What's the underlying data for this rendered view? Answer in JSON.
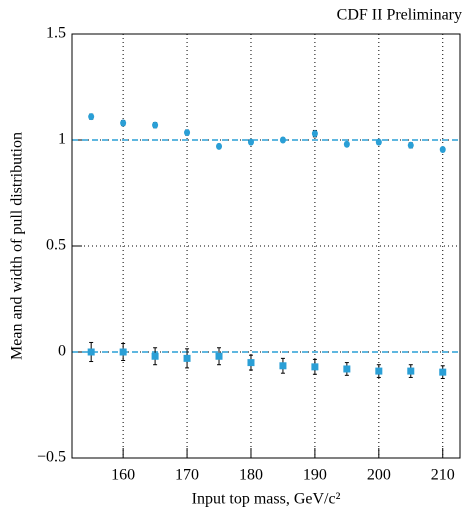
{
  "chart_data": {
    "type": "scatter",
    "title": "CDF II Preliminary",
    "x_label": "Input top mass, GeV/c²",
    "y_label": "Mean and width of pull distribution",
    "x": [
      155,
      160,
      165,
      170,
      175,
      180,
      185,
      190,
      195,
      200,
      205,
      210
    ],
    "series": [
      {
        "color": "#2a9fd6",
        "marker": "circle",
        "values": [
          1.11,
          1.08,
          1.07,
          1.035,
          0.97,
          0.99,
          1.0,
          1.03,
          0.98,
          0.99,
          0.975,
          0.955
        ],
        "errors": [
          0.012,
          0.012,
          0.012,
          0.012,
          0.01,
          0.01,
          0.01,
          0.015,
          0.01,
          0.01,
          0.012,
          0.01
        ]
      },
      {
        "color": "#2a9fd6",
        "marker": "square",
        "values": [
          0.0,
          0.0,
          -0.02,
          -0.03,
          -0.02,
          -0.05,
          -0.065,
          -0.07,
          -0.08,
          -0.09,
          -0.09,
          -0.095
        ],
        "errors": [
          0.045,
          0.04,
          0.04,
          0.045,
          0.04,
          0.035,
          0.035,
          0.035,
          0.03,
          0.03,
          0.03,
          0.03
        ]
      }
    ],
    "reference_lines": [
      0,
      1
    ],
    "reference_color": "#2a9fd6",
    "xlim": [
      152,
      212.7
    ],
    "ylim": [
      -0.5,
      1.5
    ],
    "xticks": [
      160,
      170,
      180,
      190,
      200,
      210
    ],
    "yticks": [
      {
        "value": -0.5,
        "label": "−0.5"
      },
      0,
      0.5,
      1,
      1.5
    ],
    "grid": true
  }
}
